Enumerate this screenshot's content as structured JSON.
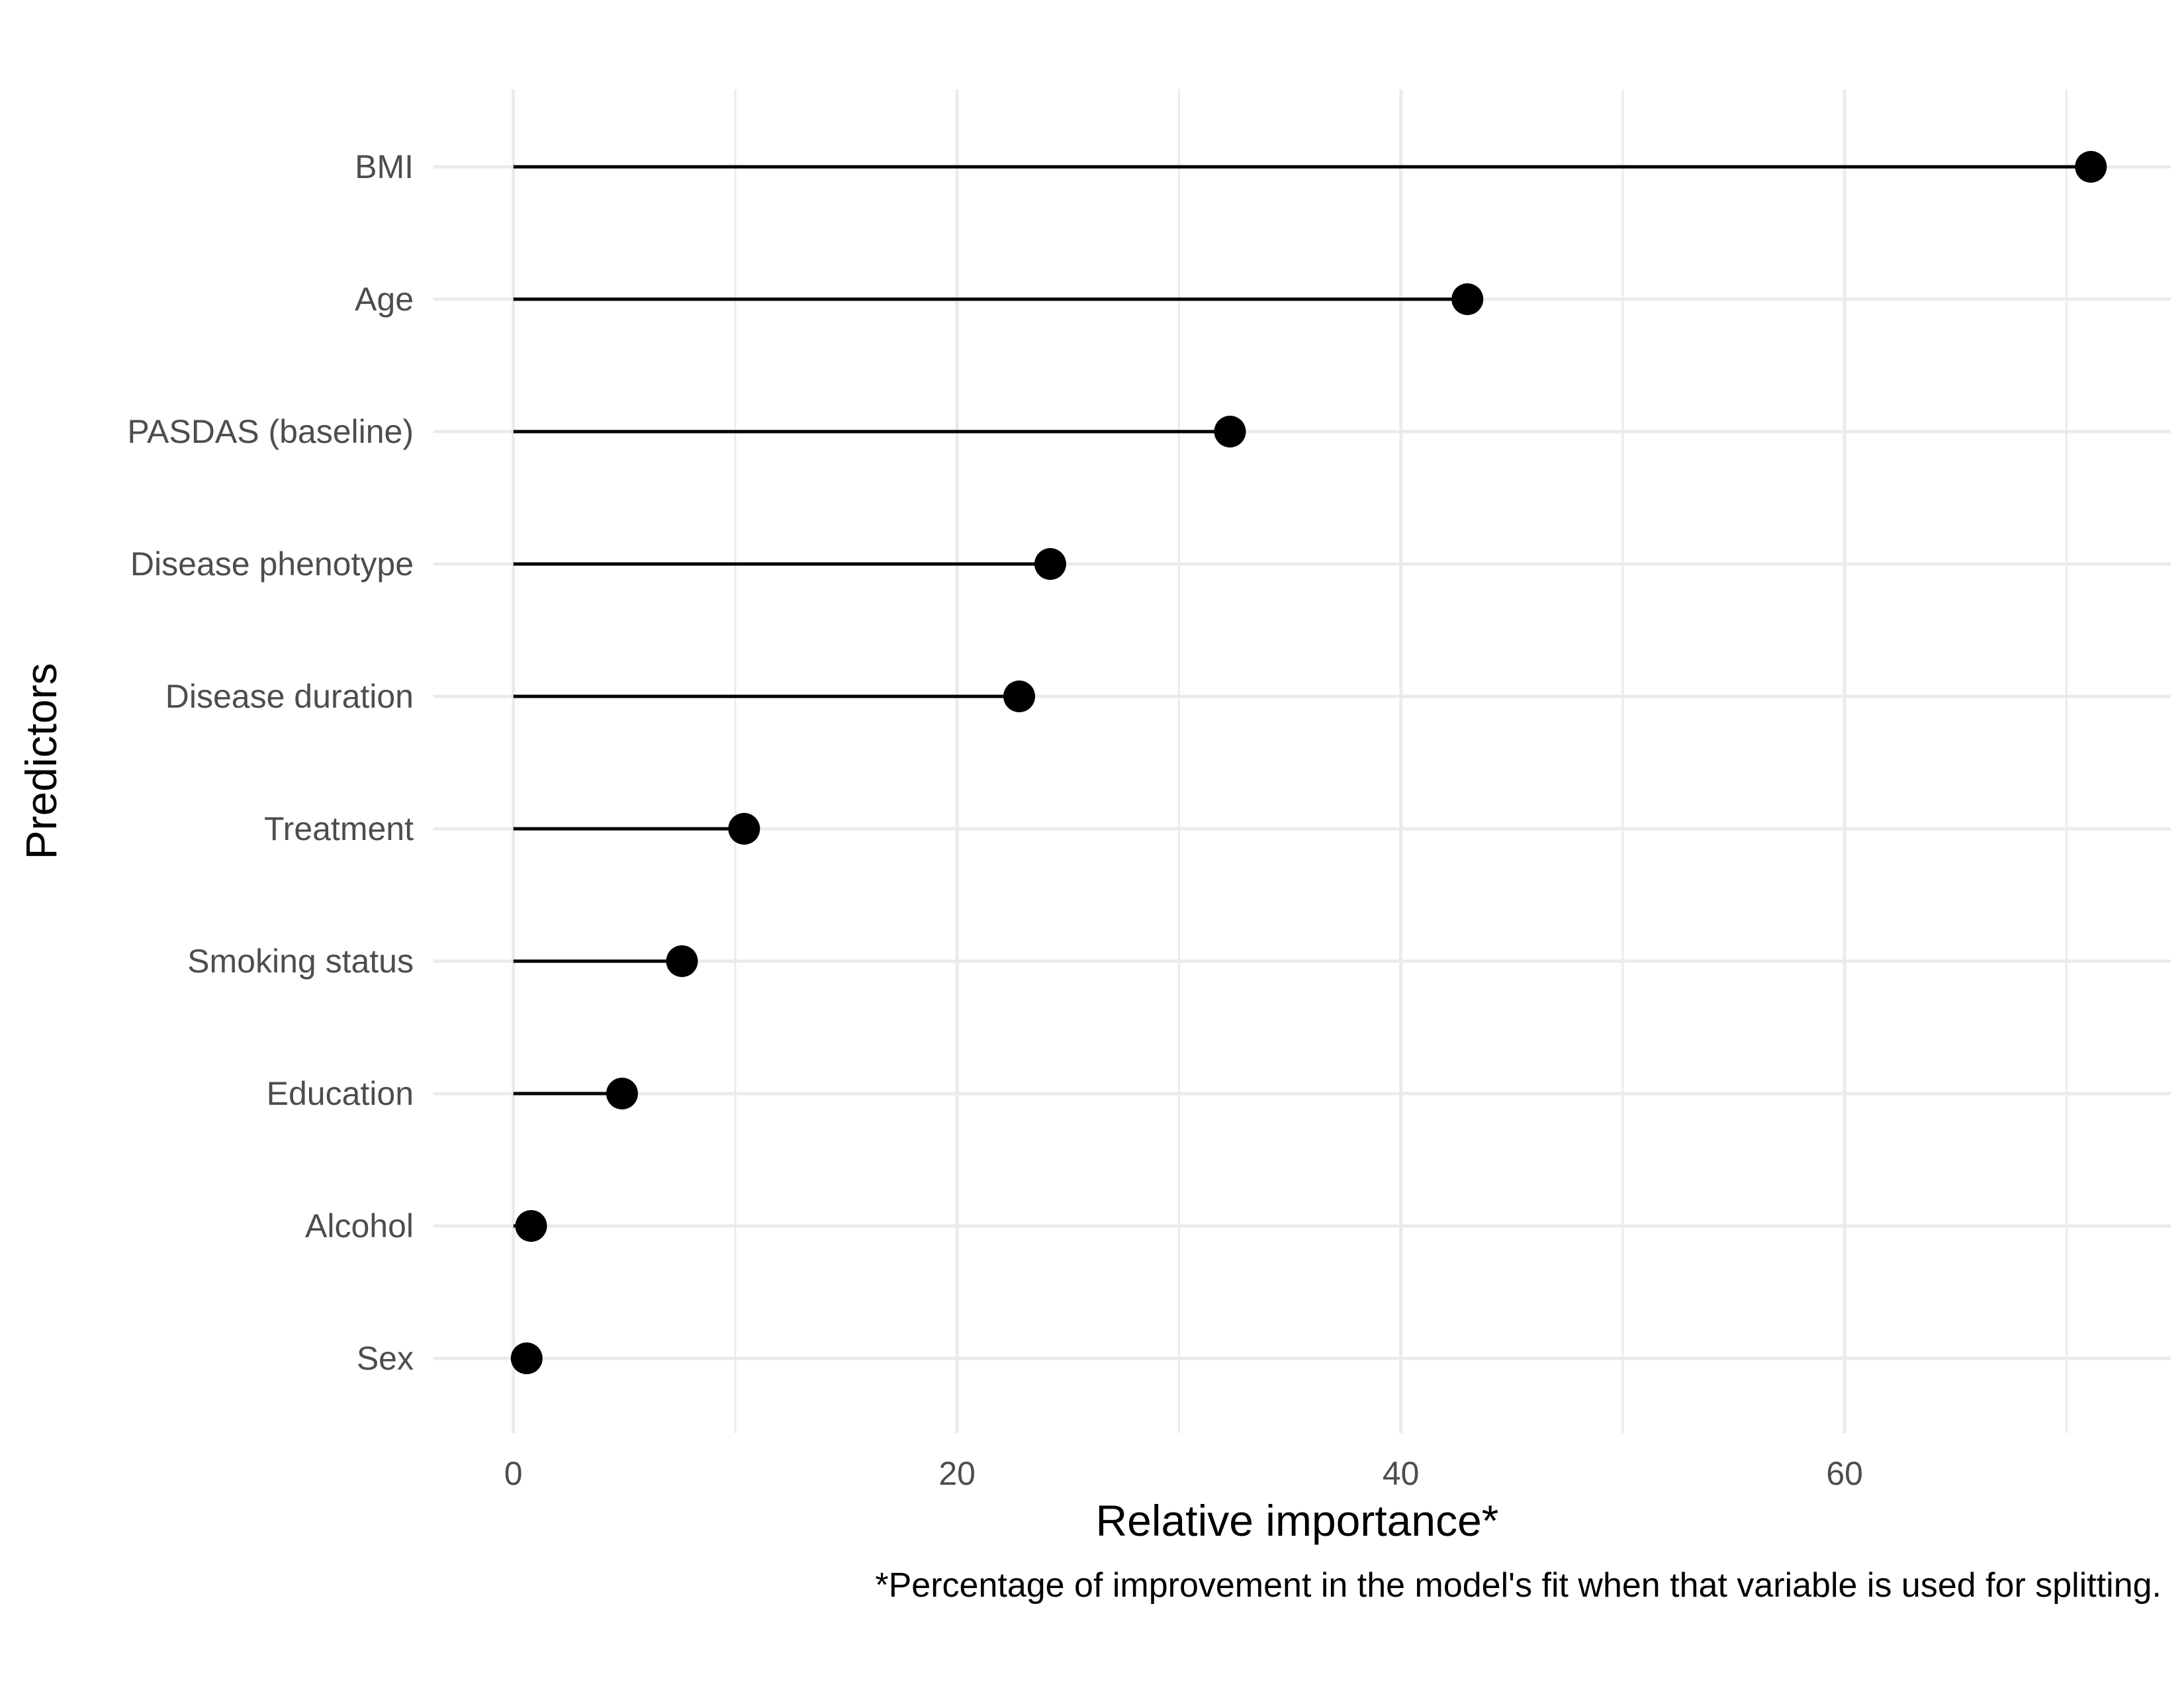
{
  "chart_data": {
    "type": "lollipop",
    "categories": [
      "BMI",
      "Age",
      "PASDAS (baseline)",
      "Disease phenotype",
      "Disease duration",
      "Treatment",
      "Smoking status",
      "Education",
      "Alcohol",
      "Sex"
    ],
    "values": [
      71.1,
      43.0,
      32.3,
      24.2,
      22.8,
      10.4,
      7.6,
      4.9,
      0.8,
      0.6
    ],
    "xlabel": "Relative importance*",
    "ylabel": "Predictors",
    "caption": "*Percentage of improvement in the model's fit when that variable is used for splitting.",
    "xlim": [
      -3.6,
      74.7
    ],
    "x_ticks": [
      0,
      20,
      40,
      60
    ],
    "x_tick_labels": [
      "0",
      "20",
      "40",
      "60"
    ],
    "grid": true,
    "colors": {
      "mark": "#000000",
      "grid": "#ebebeb",
      "tick_text": "#4d4d4d"
    }
  }
}
